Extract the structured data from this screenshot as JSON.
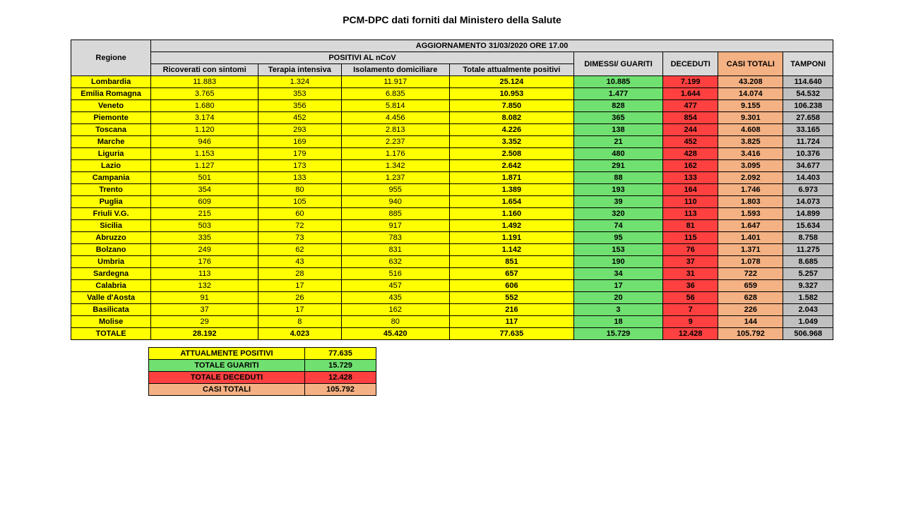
{
  "title": "PCM-DPC dati forniti dal Ministero della Salute",
  "table": {
    "header": {
      "regione": "Regione",
      "aggiornamento": "AGGIORNAMENTO 31/03/2020 ORE 17.00",
      "positivi": "POSITIVI AL nCoV",
      "ricoverati": "Ricoverati con sintomi",
      "terapia": "Terapia intensiva",
      "isolamento": "Isolamento domiciliare",
      "totale_pos": "Totale attualmente positivi",
      "dimessi": "DIMESSI/ GUARITI",
      "deceduti": "DECEDUTI",
      "casi": "CASI TOTALI",
      "tamponi": "TAMPONI"
    },
    "rows": [
      {
        "regione": "Lombardia",
        "ricoverati": "11.883",
        "terapia": "1.324",
        "isolamento": "11.917",
        "totale_pos": "25.124",
        "dimessi": "10.885",
        "deceduti": "7.199",
        "casi": "43.208",
        "tamponi": "114.640"
      },
      {
        "regione": "Emilia Romagna",
        "ricoverati": "3.765",
        "terapia": "353",
        "isolamento": "6.835",
        "totale_pos": "10.953",
        "dimessi": "1.477",
        "deceduti": "1.644",
        "casi": "14.074",
        "tamponi": "54.532"
      },
      {
        "regione": "Veneto",
        "ricoverati": "1.680",
        "terapia": "356",
        "isolamento": "5.814",
        "totale_pos": "7.850",
        "dimessi": "828",
        "deceduti": "477",
        "casi": "9.155",
        "tamponi": "106.238"
      },
      {
        "regione": "Piemonte",
        "ricoverati": "3.174",
        "terapia": "452",
        "isolamento": "4.456",
        "totale_pos": "8.082",
        "dimessi": "365",
        "deceduti": "854",
        "casi": "9.301",
        "tamponi": "27.658"
      },
      {
        "regione": "Toscana",
        "ricoverati": "1.120",
        "terapia": "293",
        "isolamento": "2.813",
        "totale_pos": "4.226",
        "dimessi": "138",
        "deceduti": "244",
        "casi": "4.608",
        "tamponi": "33.165"
      },
      {
        "regione": "Marche",
        "ricoverati": "946",
        "terapia": "169",
        "isolamento": "2.237",
        "totale_pos": "3.352",
        "dimessi": "21",
        "deceduti": "452",
        "casi": "3.825",
        "tamponi": "11.724"
      },
      {
        "regione": "Liguria",
        "ricoverati": "1.153",
        "terapia": "179",
        "isolamento": "1.176",
        "totale_pos": "2.508",
        "dimessi": "480",
        "deceduti": "428",
        "casi": "3.416",
        "tamponi": "10.376"
      },
      {
        "regione": "Lazio",
        "ricoverati": "1.127",
        "terapia": "173",
        "isolamento": "1.342",
        "totale_pos": "2.642",
        "dimessi": "291",
        "deceduti": "162",
        "casi": "3.095",
        "tamponi": "34.677"
      },
      {
        "regione": "Campania",
        "ricoverati": "501",
        "terapia": "133",
        "isolamento": "1.237",
        "totale_pos": "1.871",
        "dimessi": "88",
        "deceduti": "133",
        "casi": "2.092",
        "tamponi": "14.403"
      },
      {
        "regione": "Trento",
        "ricoverati": "354",
        "terapia": "80",
        "isolamento": "955",
        "totale_pos": "1.389",
        "dimessi": "193",
        "deceduti": "164",
        "casi": "1.746",
        "tamponi": "6.973"
      },
      {
        "regione": "Puglia",
        "ricoverati": "609",
        "terapia": "105",
        "isolamento": "940",
        "totale_pos": "1.654",
        "dimessi": "39",
        "deceduti": "110",
        "casi": "1.803",
        "tamponi": "14.073"
      },
      {
        "regione": "Friuli V.G.",
        "ricoverati": "215",
        "terapia": "60",
        "isolamento": "885",
        "totale_pos": "1.160",
        "dimessi": "320",
        "deceduti": "113",
        "casi": "1.593",
        "tamponi": "14.899"
      },
      {
        "regione": "Sicilia",
        "ricoverati": "503",
        "terapia": "72",
        "isolamento": "917",
        "totale_pos": "1.492",
        "dimessi": "74",
        "deceduti": "81",
        "casi": "1.647",
        "tamponi": "15.634"
      },
      {
        "regione": "Abruzzo",
        "ricoverati": "335",
        "terapia": "73",
        "isolamento": "783",
        "totale_pos": "1.191",
        "dimessi": "95",
        "deceduti": "115",
        "casi": "1.401",
        "tamponi": "8.758"
      },
      {
        "regione": "Bolzano",
        "ricoverati": "249",
        "terapia": "62",
        "isolamento": "831",
        "totale_pos": "1.142",
        "dimessi": "153",
        "deceduti": "76",
        "casi": "1.371",
        "tamponi": "11.275"
      },
      {
        "regione": "Umbria",
        "ricoverati": "176",
        "terapia": "43",
        "isolamento": "632",
        "totale_pos": "851",
        "dimessi": "190",
        "deceduti": "37",
        "casi": "1.078",
        "tamponi": "8.685"
      },
      {
        "regione": "Sardegna",
        "ricoverati": "113",
        "terapia": "28",
        "isolamento": "516",
        "totale_pos": "657",
        "dimessi": "34",
        "deceduti": "31",
        "casi": "722",
        "tamponi": "5.257"
      },
      {
        "regione": "Calabria",
        "ricoverati": "132",
        "terapia": "17",
        "isolamento": "457",
        "totale_pos": "606",
        "dimessi": "17",
        "deceduti": "36",
        "casi": "659",
        "tamponi": "9.327"
      },
      {
        "regione": "Valle d'Aosta",
        "ricoverati": "91",
        "terapia": "26",
        "isolamento": "435",
        "totale_pos": "552",
        "dimessi": "20",
        "deceduti": "56",
        "casi": "628",
        "tamponi": "1.582"
      },
      {
        "regione": "Basilicata",
        "ricoverati": "37",
        "terapia": "17",
        "isolamento": "162",
        "totale_pos": "216",
        "dimessi": "3",
        "deceduti": "7",
        "casi": "226",
        "tamponi": "2.043"
      },
      {
        "regione": "Molise",
        "ricoverati": "29",
        "terapia": "8",
        "isolamento": "80",
        "totale_pos": "117",
        "dimessi": "18",
        "deceduti": "9",
        "casi": "144",
        "tamponi": "1.049"
      }
    ],
    "total": {
      "regione": "TOTALE",
      "ricoverati": "28.192",
      "terapia": "4.023",
      "isolamento": "45.420",
      "totale_pos": "77.635",
      "dimessi": "15.729",
      "deceduti": "12.428",
      "casi": "105.792",
      "tamponi": "506.968"
    }
  },
  "summary": {
    "rows": [
      {
        "label": "ATTUALMENTE POSITIVI",
        "value": "77.635",
        "color": "col-yellow"
      },
      {
        "label": "TOTALE GUARITI",
        "value": "15.729",
        "color": "col-green"
      },
      {
        "label": "TOTALE DECEDUTI",
        "value": "12.428",
        "color": "col-red"
      },
      {
        "label": "CASI TOTALI",
        "value": "105.792",
        "color": "col-orange"
      }
    ]
  },
  "colors": {
    "yellow": "#ffff00",
    "green": "#70e070",
    "red": "#ff4040",
    "orange": "#f4b183",
    "grey": "#c0c0c0",
    "hdr_grey": "#d9d9d9"
  }
}
